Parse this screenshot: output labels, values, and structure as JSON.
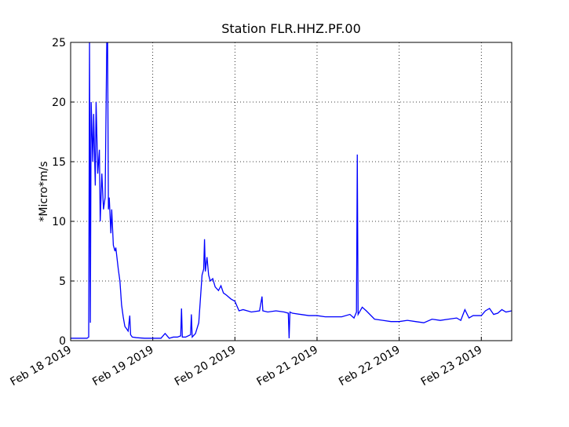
{
  "chart_data": {
    "type": "line",
    "title": "Station FLR.HHZ.PF.00",
    "y_label": "*Micro*m/s",
    "x": [
      0,
      0.1,
      0.2,
      0.22,
      0.23,
      0.24,
      0.25,
      0.27,
      0.28,
      0.3,
      0.31,
      0.33,
      0.35,
      0.36,
      0.38,
      0.4,
      0.42,
      0.44,
      0.45,
      0.46,
      0.47,
      0.49,
      0.5,
      0.52,
      0.54,
      0.55,
      0.58,
      0.6,
      0.62,
      0.64,
      0.66,
      0.68,
      0.7,
      0.72,
      0.73,
      0.75,
      0.8,
      0.9,
      1.0,
      1.1,
      1.15,
      1.2,
      1.25,
      1.3,
      1.34,
      1.35,
      1.36,
      1.4,
      1.46,
      1.47,
      1.48,
      1.52,
      1.56,
      1.58,
      1.6,
      1.62,
      1.63,
      1.64,
      1.66,
      1.68,
      1.7,
      1.73,
      1.76,
      1.8,
      1.83,
      1.86,
      1.9,
      1.95,
      2.0,
      2.05,
      2.1,
      2.2,
      2.3,
      2.33,
      2.34,
      2.4,
      2.5,
      2.6,
      2.65,
      2.66,
      2.67,
      2.7,
      2.8,
      2.9,
      3.0,
      3.1,
      3.2,
      3.3,
      3.4,
      3.45,
      3.48,
      3.49,
      3.5,
      3.55,
      3.6,
      3.7,
      3.8,
      3.9,
      4.0,
      4.1,
      4.2,
      4.3,
      4.4,
      4.5,
      4.6,
      4.7,
      4.75,
      4.8,
      4.85,
      4.9,
      5.0,
      5.05,
      5.1,
      5.15,
      5.2,
      5.25,
      5.3,
      5.37
    ],
    "series": [
      {
        "name": "FLR.HHZ.PF.00",
        "color": "#0000ff",
        "values": [
          0.2,
          0.2,
          0.2,
          0.3,
          25,
          1.5,
          20,
          15,
          19,
          13,
          20,
          14,
          16,
          10,
          14,
          11,
          12,
          25,
          25,
          11,
          12,
          9,
          11,
          8,
          7.5,
          7.8,
          6,
          5,
          3,
          2,
          1.2,
          1,
          0.8,
          2.1,
          0.5,
          0.3,
          0.25,
          0.2,
          0.2,
          0.2,
          0.6,
          0.2,
          0.3,
          0.3,
          0.4,
          2.7,
          0.3,
          0.3,
          0.5,
          2.2,
          0.3,
          0.6,
          1.5,
          3.5,
          5.5,
          6,
          8.5,
          5.8,
          7,
          5.5,
          5,
          5.2,
          4.5,
          4.2,
          4.6,
          4,
          3.8,
          3.5,
          3.3,
          2.5,
          2.6,
          2.4,
          2.5,
          3.7,
          2.5,
          2.4,
          2.5,
          2.4,
          2.3,
          0.2,
          2.4,
          2.3,
          2.2,
          2.1,
          2.1,
          2,
          2,
          2,
          2.2,
          1.9,
          2.4,
          15.6,
          2.2,
          2.8,
          2.5,
          1.8,
          1.7,
          1.6,
          1.6,
          1.7,
          1.6,
          1.5,
          1.8,
          1.7,
          1.8,
          1.9,
          1.7,
          2.6,
          1.9,
          2.1,
          2.1,
          2.5,
          2.7,
          2.2,
          2.3,
          2.6,
          2.4,
          2.5
        ]
      }
    ],
    "xlim": [
      0,
      5.37
    ],
    "xticks": [
      {
        "value": 0,
        "label": "Feb 18 2019"
      },
      {
        "value": 1,
        "label": "Feb 19 2019"
      },
      {
        "value": 2,
        "label": "Feb 20 2019"
      },
      {
        "value": 3,
        "label": "Feb 21 2019"
      },
      {
        "value": 4,
        "label": "Feb 22 2019"
      },
      {
        "value": 5,
        "label": "Feb 23 2019"
      }
    ],
    "ylim": [
      0,
      25
    ],
    "yticks": [
      0,
      5,
      10,
      15,
      20,
      25
    ],
    "grid": true
  }
}
